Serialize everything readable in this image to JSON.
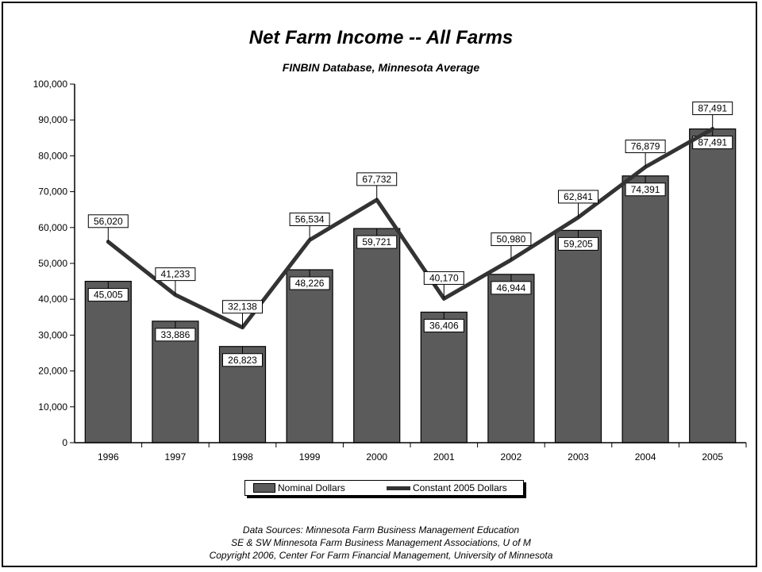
{
  "title": "Net Farm Income -- All Farms",
  "subtitle": "FINBIN Database, Minnesota Average",
  "legend": {
    "bar_label": "Nominal Dollars",
    "line_label": "Constant 2005 Dollars"
  },
  "sources": [
    "Data Sources:  Minnesota Farm Business Management Education",
    "SE & SW Minnesota Farm Business Management Associations, U of M",
    "Copyright 2006, Center For Farm Financial Management, University of Minnesota"
  ],
  "colors": {
    "bar": "#5b5b5b",
    "line": "#333333"
  },
  "chart_data": {
    "type": "bar",
    "title": "Net Farm Income -- All Farms",
    "subtitle": "FINBIN Database, Minnesota Average",
    "categories": [
      "1996",
      "1997",
      "1998",
      "1999",
      "2000",
      "2001",
      "2002",
      "2003",
      "2004",
      "2005"
    ],
    "series": [
      {
        "name": "Nominal Dollars",
        "type": "bar",
        "values": [
          45005,
          33886,
          26823,
          48226,
          59721,
          36406,
          46944,
          59205,
          74391,
          87491
        ],
        "labels": [
          "45,005",
          "33,886",
          "26,823",
          "48,226",
          "59,721",
          "36,406",
          "46,944",
          "59,205",
          "74,391",
          "87,491"
        ]
      },
      {
        "name": "Constant 2005 Dollars",
        "type": "line",
        "values": [
          56020,
          41233,
          32138,
          56534,
          67732,
          40170,
          50980,
          62841,
          76879,
          87491
        ],
        "labels": [
          "56,020",
          "41,233",
          "32,138",
          "56,534",
          "67,732",
          "40,170",
          "50,980",
          "62,841",
          "76,879",
          "87,491"
        ]
      }
    ],
    "ylim": [
      0,
      100000
    ],
    "yticks": [
      0,
      10000,
      20000,
      30000,
      40000,
      50000,
      60000,
      70000,
      80000,
      90000,
      100000
    ],
    "ytick_labels": [
      "0",
      "10,000",
      "20,000",
      "30,000",
      "40,000",
      "50,000",
      "60,000",
      "70,000",
      "80,000",
      "90,000",
      "100,000"
    ],
    "grid": false,
    "legend_position": "bottom"
  }
}
